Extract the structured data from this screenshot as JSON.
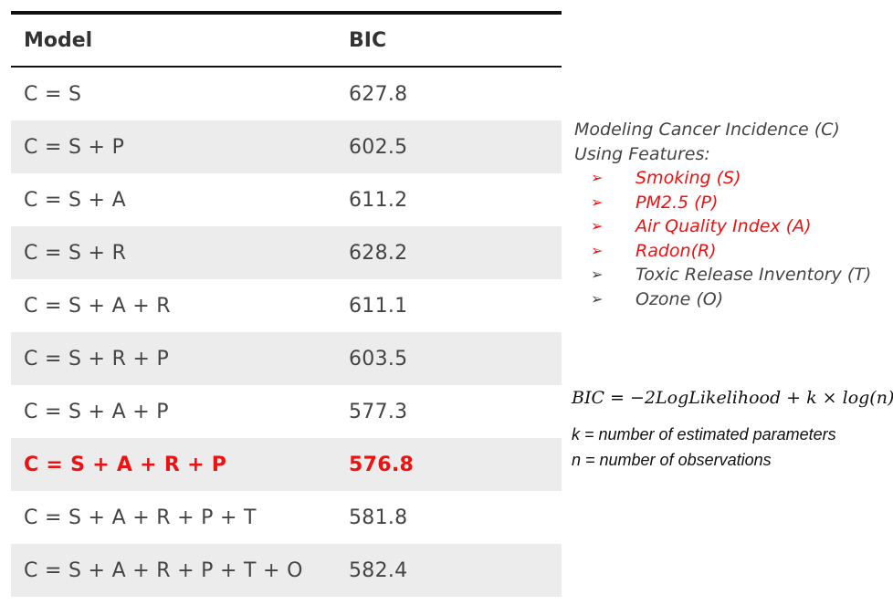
{
  "table": {
    "headers": {
      "model": "Model",
      "bic": "BIC"
    },
    "rows": [
      {
        "model": "C = S",
        "bic": "627.8"
      },
      {
        "model": "C = S + P",
        "bic": "602.5"
      },
      {
        "model": "C = S + A",
        "bic": "611.2"
      },
      {
        "model": "C = S + R",
        "bic": "628.2"
      },
      {
        "model": "C = S + A + R",
        "bic": "611.1"
      },
      {
        "model": "C = S + R + P",
        "bic": "603.5"
      },
      {
        "model": "C = S + A + P",
        "bic": "577.3"
      },
      {
        "model": "C = S + A + R + P",
        "bic": "576.8"
      },
      {
        "model": "C = S + A + R + P + T",
        "bic": "581.8"
      },
      {
        "model": "C = S + A + R + P + T + O",
        "bic": "582.4"
      }
    ],
    "highlight_color": "#ee1111"
  },
  "panel": {
    "line1": "Modeling Cancer Incidence (C)",
    "line2": "Using Features:",
    "bullet_glyph": "➢",
    "features": [
      {
        "label": "Smoking (S)",
        "selected": true
      },
      {
        "label": "PM2.5 (P)",
        "selected": true
      },
      {
        "label": "Air Quality Index (A)",
        "selected": true
      },
      {
        "label": "Radon(R)",
        "selected": true
      },
      {
        "label": "Toxic Release Inventory (T)",
        "selected": false
      },
      {
        "label": "Ozone (O)",
        "selected": false
      }
    ]
  },
  "formula": {
    "text": "BIC = −2LogLikelihood + k × log(n)",
    "k_def": "k = number of estimated parameters",
    "n_def": "n = number of observations"
  }
}
